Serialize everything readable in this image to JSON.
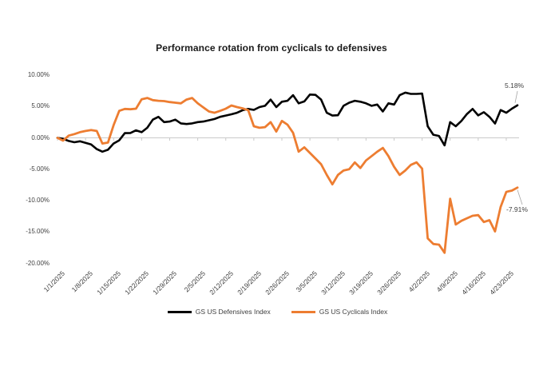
{
  "title": "Performance rotation from cyclicals to defensives",
  "labels": {
    "defensives_end": "5.18%",
    "cyclicals_end": "-7.91%"
  },
  "legend": {
    "defensives": "GS US Defensives Index",
    "cyclicals": "GS US Cyclicals Index"
  },
  "colors": {
    "defensives_line": "#000000",
    "cyclicals_line": "#ED7D31",
    "axis_line": "#C9C9C9",
    "leader_line": "#A6A6A6",
    "tick_text": "#404040"
  },
  "chart_data": {
    "type": "line",
    "title": "Performance rotation from cyclicals to defensives",
    "xlabel": "",
    "ylabel": "",
    "ylim": [
      -20,
      10
    ],
    "y_tick_values": [
      10,
      5,
      0,
      -5,
      -10,
      -15,
      -20
    ],
    "y_tick_labels": [
      "10.00%",
      "5.00%",
      "0.00%",
      "-5.00%",
      "-10.00%",
      "-15.00%",
      "-20.00%"
    ],
    "grid": "zero-axis-only",
    "legend_position": "bottom",
    "x_tick_every": 5,
    "x": [
      "1/1/2025",
      "1/2/2025",
      "1/3/2025",
      "1/6/2025",
      "1/7/2025",
      "1/8/2025",
      "1/9/2025",
      "1/10/2025",
      "1/13/2025",
      "1/14/2025",
      "1/15/2025",
      "1/16/2025",
      "1/17/2025",
      "1/20/2025",
      "1/21/2025",
      "1/22/2025",
      "1/23/2025",
      "1/24/2025",
      "1/27/2025",
      "1/28/2025",
      "1/29/2025",
      "1/30/2025",
      "1/31/2025",
      "2/3/2025",
      "2/4/2025",
      "2/5/2025",
      "2/6/2025",
      "2/7/2025",
      "2/10/2025",
      "2/11/2025",
      "2/12/2025",
      "2/13/2025",
      "2/14/2025",
      "2/17/2025",
      "2/18/2025",
      "2/19/2025",
      "2/20/2025",
      "2/21/2025",
      "2/24/2025",
      "2/25/2025",
      "2/26/2025",
      "2/27/2025",
      "2/28/2025",
      "3/3/2025",
      "3/4/2025",
      "3/5/2025",
      "3/6/2025",
      "3/7/2025",
      "3/10/2025",
      "3/11/2025",
      "3/12/2025",
      "3/13/2025",
      "3/14/2025",
      "3/17/2025",
      "3/18/2025",
      "3/19/2025",
      "3/20/2025",
      "3/21/2025",
      "3/24/2025",
      "3/25/2025",
      "3/26/2025",
      "3/27/2025",
      "3/28/2025",
      "3/31/2025",
      "4/1/2025",
      "4/2/2025",
      "4/3/2025",
      "4/4/2025",
      "4/7/2025",
      "4/8/2025",
      "4/9/2025",
      "4/10/2025",
      "4/11/2025",
      "4/14/2025",
      "4/15/2025",
      "4/16/2025",
      "4/17/2025",
      "4/18/2025",
      "4/21/2025",
      "4/22/2025",
      "4/23/2025",
      "4/24/2025",
      "4/25/2025"
    ],
    "series": [
      {
        "name": "GS US Defensives Index",
        "color": "#000000",
        "end_label": "5.18%",
        "values": [
          0.0,
          -0.15,
          -0.5,
          -0.7,
          -0.55,
          -0.8,
          -1.05,
          -1.8,
          -2.2,
          -1.9,
          -0.9,
          -0.4,
          0.75,
          0.77,
          1.2,
          0.9,
          1.6,
          2.9,
          3.35,
          2.5,
          2.6,
          2.9,
          2.3,
          2.2,
          2.3,
          2.5,
          2.6,
          2.8,
          3.0,
          3.35,
          3.55,
          3.75,
          4.0,
          4.4,
          4.6,
          4.45,
          4.9,
          5.1,
          6.1,
          4.9,
          5.75,
          5.9,
          6.8,
          5.5,
          5.8,
          6.9,
          6.85,
          6.1,
          4.0,
          3.55,
          3.6,
          5.1,
          5.6,
          5.9,
          5.75,
          5.5,
          5.1,
          5.3,
          4.2,
          5.5,
          5.3,
          6.8,
          7.2,
          7.0,
          7.0,
          7.05,
          1.85,
          0.5,
          0.3,
          -1.2,
          2.5,
          1.85,
          2.7,
          3.8,
          4.6,
          3.57,
          4.08,
          3.35,
          2.28,
          4.43,
          4.0,
          4.64,
          5.18
        ]
      },
      {
        "name": "GS US Cyclicals Index",
        "color": "#ED7D31",
        "end_label": "-7.91%",
        "values": [
          0.0,
          -0.45,
          0.35,
          0.6,
          0.9,
          1.1,
          1.25,
          1.1,
          -0.9,
          -0.75,
          2.0,
          4.3,
          4.6,
          4.55,
          4.65,
          6.15,
          6.35,
          6.0,
          5.9,
          5.85,
          5.7,
          5.6,
          5.5,
          6.1,
          6.35,
          5.5,
          4.85,
          4.2,
          4.0,
          4.3,
          4.65,
          5.15,
          4.9,
          4.7,
          4.4,
          1.85,
          1.6,
          1.7,
          2.5,
          1.0,
          2.7,
          2.1,
          0.8,
          -2.2,
          -1.5,
          -2.4,
          -3.3,
          -4.2,
          -5.9,
          -7.4,
          -5.9,
          -5.2,
          -5.0,
          -3.9,
          -4.8,
          -3.6,
          -2.9,
          -2.2,
          -1.6,
          -2.9,
          -4.6,
          -5.9,
          -5.2,
          -4.3,
          -3.9,
          -4.9,
          -16.0,
          -16.9,
          -17.0,
          -18.3,
          -9.7,
          -13.8,
          -13.2,
          -12.8,
          -12.4,
          -12.3,
          -13.4,
          -13.1,
          -14.9,
          -11.0,
          -8.6,
          -8.4,
          -7.91
        ]
      }
    ]
  }
}
